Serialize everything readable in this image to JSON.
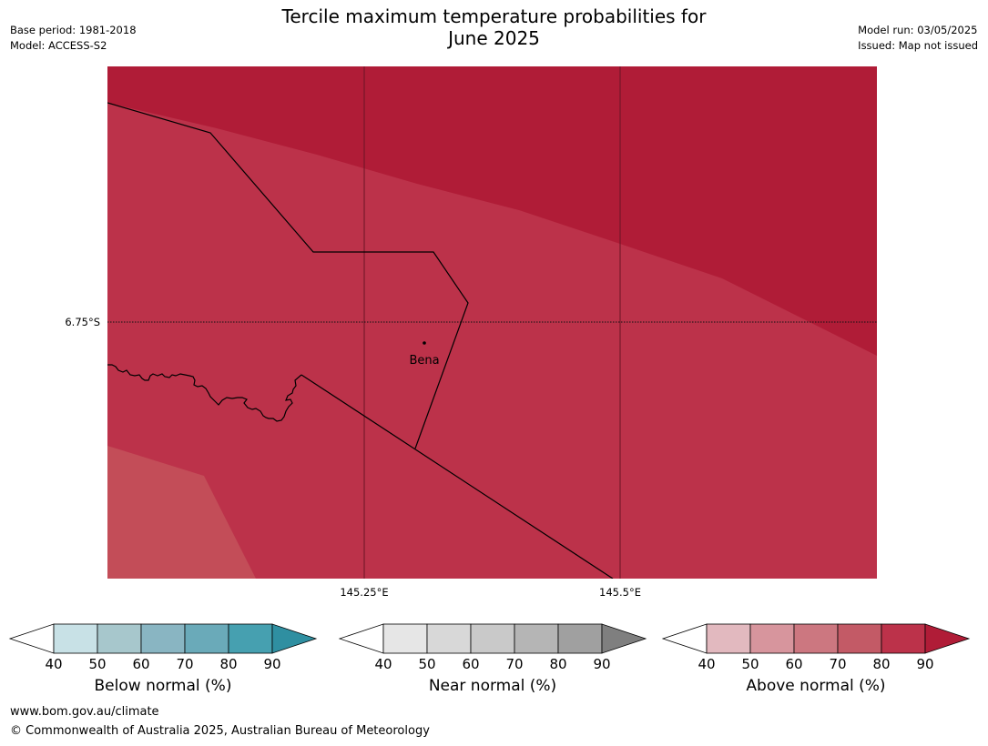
{
  "header": {
    "title_line1": "Tercile maximum temperature probabilities for",
    "title_line2": "June 2025",
    "base_period": "Base period: 1981-2018",
    "model": "Model: ACCESS-S2",
    "model_run": "Model run: 03/05/2025",
    "issued": "Issued: Map not issued"
  },
  "map": {
    "lat_label": "6.75°S",
    "lon_labels": [
      "145.25°E",
      "145.5°E"
    ],
    "place_label": "Bena",
    "fill_colors": {
      "above_90": "#b01c37",
      "above_80": "#bc324a",
      "above_70": "#c34d58"
    }
  },
  "colorbars": [
    {
      "title": "Below normal (%)",
      "ticks": [
        "40",
        "50",
        "60",
        "70",
        "80",
        "90"
      ],
      "colors": [
        "#ffffff",
        "#c8e1e6",
        "#a7c7cc",
        "#89b5c2",
        "#6aaab9",
        "#46a0b0",
        "#2f8fa1"
      ]
    },
    {
      "title": "Near normal (%)",
      "ticks": [
        "40",
        "50",
        "60",
        "70",
        "80",
        "90"
      ],
      "colors": [
        "#ffffff",
        "#e6e6e6",
        "#d8d8d8",
        "#c9c9c9",
        "#b5b5b5",
        "#a0a0a0",
        "#7f7f7f"
      ]
    },
    {
      "title": "Above normal (%)",
      "ticks": [
        "40",
        "50",
        "60",
        "70",
        "80",
        "90"
      ],
      "colors": [
        "#ffffff",
        "#e2b9bf",
        "#d7959d",
        "#cc7780",
        "#c35a66",
        "#bc324a",
        "#b01c37"
      ]
    }
  ],
  "footer": {
    "url": "www.bom.gov.au/climate",
    "copyright": "© Commonwealth of Australia 2025, Australian Bureau of Meteorology"
  }
}
